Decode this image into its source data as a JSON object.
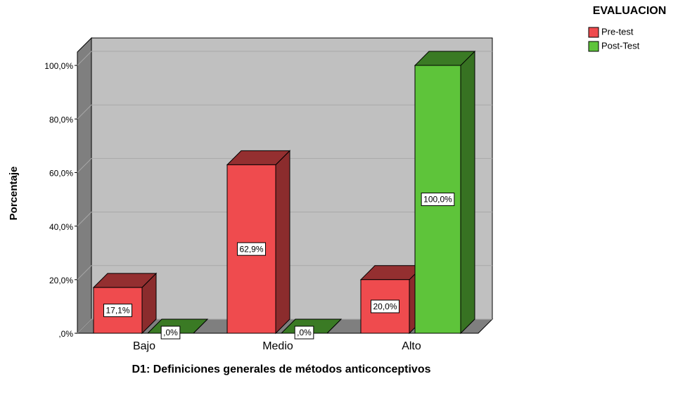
{
  "chart_data": {
    "type": "bar3d",
    "x_label": "D1: Definiciones generales de métodos anticonceptivos",
    "y_label": "Porcentaje",
    "legend_title": "EVALUACION",
    "legend_position": "top-right",
    "categories": [
      "Bajo",
      "Medio",
      "Alto"
    ],
    "series": [
      {
        "name": "Pre-test",
        "color": "#ef4b4e",
        "values": [
          17.1,
          62.9,
          20.0
        ],
        "value_labels": [
          "17,1%",
          "62,9%",
          "20,0%"
        ]
      },
      {
        "name": "Post-Test",
        "color": "#5ec43a",
        "values": [
          0,
          0,
          100
        ],
        "value_labels": [
          ",0%",
          ",0%",
          "100,0%"
        ]
      }
    ],
    "ylim": [
      0,
      105
    ],
    "yticks": [
      {
        "value": 0,
        "label": ",0%"
      },
      {
        "value": 20,
        "label": "20,0%"
      },
      {
        "value": 40,
        "label": "40,0%"
      },
      {
        "value": 60,
        "label": "60,0%"
      },
      {
        "value": 80,
        "label": "80,0%"
      },
      {
        "value": 100,
        "label": "100,0%"
      }
    ],
    "grid": true
  }
}
